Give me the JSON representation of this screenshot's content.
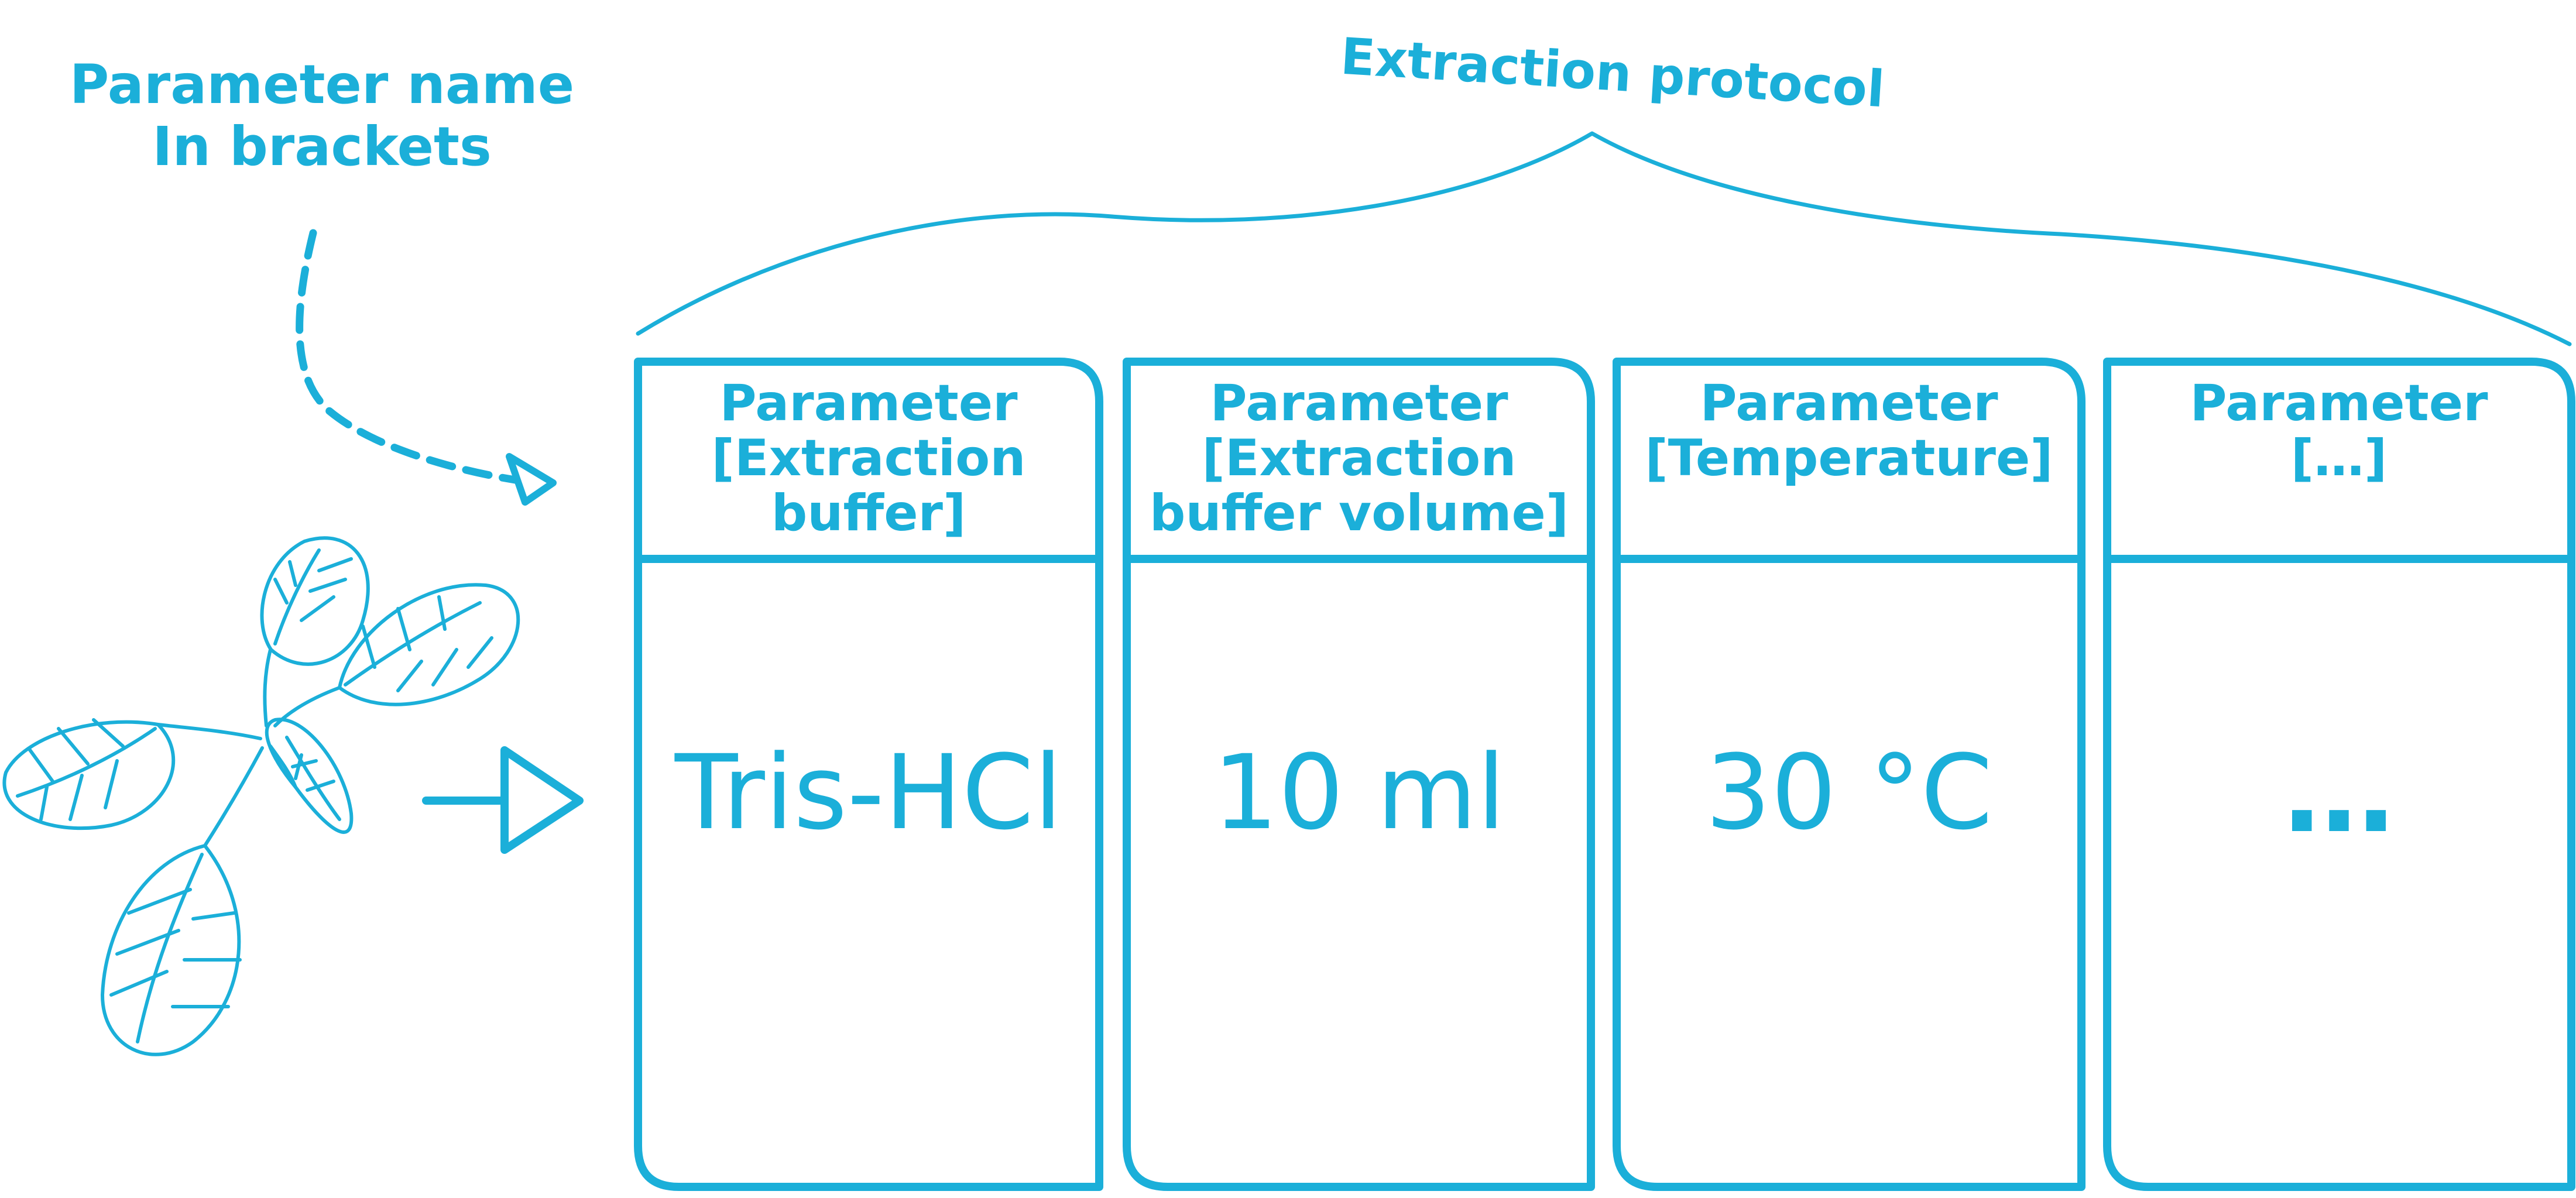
{
  "annotation": {
    "line1": "Parameter name",
    "line2": "In brackets"
  },
  "protocol": {
    "title": "Extraction protocol"
  },
  "columns": [
    {
      "header": [
        "Parameter",
        "[Extraction",
        "buffer]"
      ],
      "value": "Tris-HCl"
    },
    {
      "header": [
        "Parameter",
        "[Extraction",
        "buffer volume]"
      ],
      "value": "10 ml"
    },
    {
      "header": [
        "Parameter",
        "[Temperature]"
      ],
      "value": "30 °C"
    },
    {
      "header": [
        "Parameter",
        "[…]"
      ],
      "value": "…"
    }
  ],
  "colors": {
    "accent": "#1bafd9"
  },
  "icons": [
    "plant-icon",
    "arrow-right-icon",
    "dashed-arrow-icon",
    "curly-brace-icon"
  ]
}
